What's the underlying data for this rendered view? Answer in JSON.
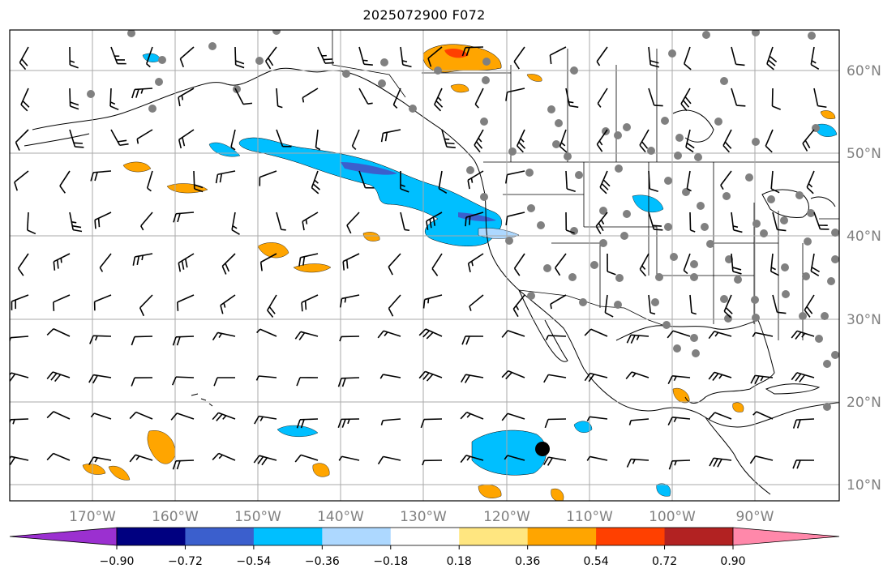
{
  "title": "2025072900 F072",
  "map": {
    "projection": "plate-carree",
    "lon_range": [
      -180,
      -81
    ],
    "lat_range": [
      7.5,
      64
    ],
    "gridlines": true,
    "latitude_labels": [
      "60°N",
      "50°N",
      "40°N",
      "30°N",
      "20°N",
      "10°N"
    ],
    "longitude_labels": [
      "170°W",
      "160°W",
      "150°W",
      "140°W",
      "130°W",
      "120°W",
      "110°W",
      "100°W",
      "90°W"
    ],
    "label_color": "#808080",
    "overlays": [
      "coastlines",
      "country-borders",
      "state-borders",
      "wind-barbs",
      "station-dots",
      "filled-contours"
    ]
  },
  "colorbar": {
    "orientation": "horizontal",
    "extend": "both",
    "colors": [
      "#9b30d0",
      "#000080",
      "#3b5fcd",
      "#00bfff",
      "#add8ff",
      "#ffffff",
      "#ffe680",
      "#ffa500",
      "#ff4000",
      "#b22222",
      "#ff88aa"
    ],
    "tick_labels": [
      "−0.90",
      "−0.72",
      "−0.54",
      "−0.36",
      "−0.18",
      "0.18",
      "0.36",
      "0.54",
      "0.72",
      "0.90"
    ]
  },
  "marker": {
    "type": "black-dot",
    "lon": -115.5,
    "lat": 14
  }
}
